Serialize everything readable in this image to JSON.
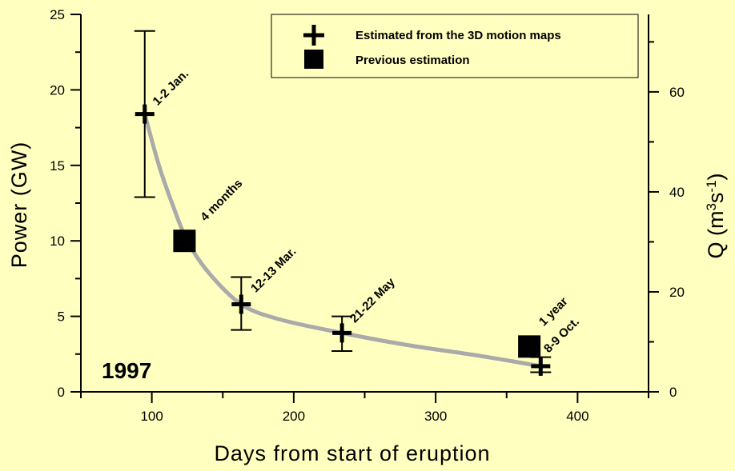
{
  "chart_data": {
    "type": "scatter",
    "title": "",
    "xlabel": "Days from start of eruption",
    "ylabel": "Power (GW)",
    "ylabel_right": "Q (m3s-1)",
    "xlim": [
      50,
      450
    ],
    "ylim": [
      0,
      25
    ],
    "ylim_right": [
      0,
      75.5
    ],
    "x_ticks": [
      "100",
      "200",
      "300",
      "400"
    ],
    "y_ticks": [
      "0",
      "5",
      "10",
      "15",
      "20",
      "25"
    ],
    "y_right_ticks": [
      "0",
      "20",
      "40",
      "60"
    ],
    "grid": false,
    "legend_position": "top-right",
    "year_label": "1997",
    "series": [
      {
        "name": "Estimated from the 3D motion maps",
        "marker": "plus",
        "color": "#000000",
        "points": [
          {
            "x": 95,
            "y": 18.4,
            "err_low": 12.9,
            "err_high": 23.9,
            "label": "1-2 Jan."
          },
          {
            "x": 163,
            "y": 5.8,
            "err_low": 4.1,
            "err_high": 7.6,
            "label": "12-13 Mar."
          },
          {
            "x": 234,
            "y": 3.9,
            "err_low": 2.7,
            "err_high": 5.0,
            "label": "21-22 May"
          },
          {
            "x": 374,
            "y": 1.7,
            "err_low": 1.3,
            "err_high": 2.3,
            "label": "8-9 Oct."
          }
        ]
      },
      {
        "name": "Previous estimation",
        "marker": "square",
        "color": "#000000",
        "points": [
          {
            "x": 123,
            "y": 10.0,
            "label": "4 months"
          },
          {
            "x": 366,
            "y": 3.0,
            "label": "1 year"
          }
        ]
      }
    ],
    "fit_curve": {
      "color": "#aaaaaa",
      "points": [
        [
          95,
          18.4
        ],
        [
          105,
          15.0
        ],
        [
          115,
          12.3
        ],
        [
          125,
          10.0
        ],
        [
          140,
          7.9
        ],
        [
          163,
          5.8
        ],
        [
          190,
          4.8
        ],
        [
          234,
          3.9
        ],
        [
          280,
          3.1
        ],
        [
          330,
          2.4
        ],
        [
          374,
          1.7
        ]
      ]
    }
  }
}
